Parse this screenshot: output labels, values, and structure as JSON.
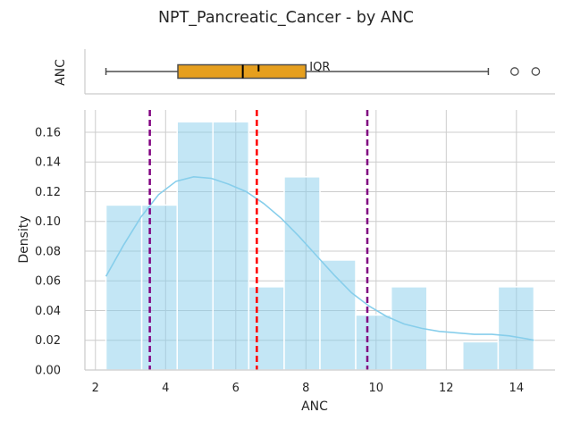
{
  "chart_data": {
    "type": "histogram",
    "title": "NPT_Pancreatic_Cancer - by ANC",
    "xlabel": "ANC",
    "ylabel": "Density",
    "grid": true,
    "x_ticks": [
      2,
      4,
      6,
      8,
      10,
      12,
      14
    ],
    "x_tick_labels": [
      "2",
      "4",
      "6",
      "8",
      "10",
      "12",
      "14"
    ],
    "y_ticks": [
      0.0,
      0.02,
      0.04,
      0.06,
      0.08,
      0.1,
      0.12,
      0.14,
      0.16
    ],
    "y_tick_labels": [
      "0.00",
      "0.02",
      "0.04",
      "0.06",
      "0.08",
      "0.10",
      "0.12",
      "0.14",
      "0.16"
    ],
    "xlim": [
      1.7,
      15.1
    ],
    "ylim": [
      0,
      0.175
    ],
    "bin_edges": [
      2.3,
      3.32,
      4.33,
      5.35,
      6.37,
      7.38,
      8.4,
      9.42,
      10.43,
      11.45,
      12.47,
      13.48,
      14.5
    ],
    "density": [
      0.111,
      0.111,
      0.167,
      0.167,
      0.056,
      0.13,
      0.074,
      0.037,
      0.056,
      0.0,
      0.019,
      0.056
    ],
    "bar_color": "#87ceeb",
    "kde": {
      "x": [
        2.3,
        2.8,
        3.3,
        3.8,
        4.3,
        4.8,
        5.3,
        5.8,
        6.3,
        6.8,
        7.3,
        7.8,
        8.3,
        8.8,
        9.3,
        9.8,
        10.3,
        10.8,
        11.3,
        11.8,
        12.3,
        12.8,
        13.3,
        13.8,
        14.3,
        14.5
      ],
      "y": [
        0.063,
        0.084,
        0.103,
        0.118,
        0.127,
        0.13,
        0.129,
        0.125,
        0.12,
        0.112,
        0.102,
        0.09,
        0.077,
        0.064,
        0.052,
        0.043,
        0.036,
        0.031,
        0.028,
        0.026,
        0.025,
        0.024,
        0.024,
        0.023,
        0.021,
        0.02
      ],
      "color": "#87ceeb"
    },
    "reference_lines": [
      {
        "x": 3.55,
        "color": "#800080",
        "style": "dashed"
      },
      {
        "x": 6.6,
        "color": "#ff0000",
        "style": "dashed"
      },
      {
        "x": 9.75,
        "color": "#800080",
        "style": "dashed"
      }
    ],
    "boxplot": {
      "ylabel": "ANC",
      "whisker_low": 2.3,
      "q1": 4.35,
      "median": 6.2,
      "mean": 6.65,
      "q3": 8.0,
      "whisker_high": 13.2,
      "outliers": [
        13.95,
        14.55
      ],
      "box_color": "#e69f1e",
      "annotation": "IQR"
    }
  }
}
